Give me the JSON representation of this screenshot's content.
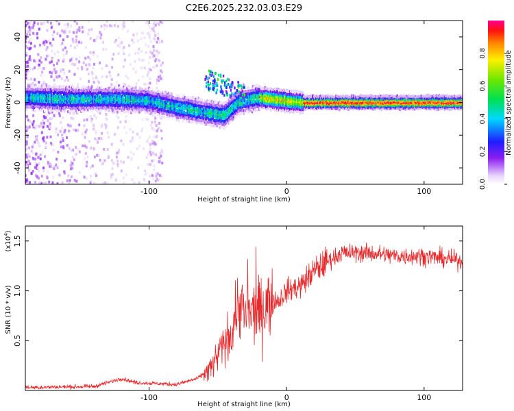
{
  "chart_data": [
    {
      "type": "heatmap",
      "title": "C2E6.2025.232.03.03.E29",
      "xlabel": "Height of straight line (km)",
      "ylabel": "Frequency (Hz)",
      "xlim": [
        -190,
        128
      ],
      "ylim": [
        -50,
        50
      ],
      "xticks": [
        -100,
        0,
        100
      ],
      "yticks": [
        -40,
        -20,
        0,
        20,
        40
      ],
      "colorbar": {
        "label": "Normalized spectral amplitude",
        "range": [
          0.0,
          1.0
        ],
        "ticks": [
          0.0,
          0.2,
          0.4,
          0.6,
          0.8
        ]
      },
      "ridge": {
        "description_points": [
          {
            "x": -190,
            "y": 3
          },
          {
            "x": -160,
            "y": 2
          },
          {
            "x": -120,
            "y": 2
          },
          {
            "x": -100,
            "y": 1
          },
          {
            "x": -80,
            "y": -3
          },
          {
            "x": -60,
            "y": -6
          },
          {
            "x": -45,
            "y": -8
          },
          {
            "x": -35,
            "y": 0
          },
          {
            "x": -20,
            "y": 3
          },
          {
            "x": 0,
            "y": 1
          },
          {
            "x": 12,
            "y": 0
          },
          {
            "x": 128,
            "y": 0
          }
        ]
      }
    },
    {
      "type": "line",
      "xlabel": "Height of straight line (km)",
      "ylabel": "SNR (10 * v/v)",
      "multiplier_label": "(x10",
      "multiplier_exp": "4",
      "xlim": [
        -190,
        128
      ],
      "ylim": [
        0,
        1.65
      ],
      "xticks": [
        -100,
        0,
        100
      ],
      "yticks": [
        0.5,
        1.0,
        1.5
      ],
      "ytick_labels": [
        "0.5",
        "1.0",
        "1.5"
      ],
      "series": [
        {
          "name": "SNR",
          "color": "#e8292c",
          "points": [
            {
              "x": -190,
              "y": 0.03
            },
            {
              "x": -140,
              "y": 0.04
            },
            {
              "x": -120,
              "y": 0.12
            },
            {
              "x": -110,
              "y": 0.08
            },
            {
              "x": -80,
              "y": 0.06
            },
            {
              "x": -65,
              "y": 0.12
            },
            {
              "x": -55,
              "y": 0.22
            },
            {
              "x": -48,
              "y": 0.4
            },
            {
              "x": -40,
              "y": 0.6
            },
            {
              "x": -35,
              "y": 0.9
            },
            {
              "x": -30,
              "y": 0.75
            },
            {
              "x": -20,
              "y": 0.8
            },
            {
              "x": -12,
              "y": 0.9
            },
            {
              "x": -6,
              "y": 0.9
            },
            {
              "x": 0,
              "y": 1.0
            },
            {
              "x": 10,
              "y": 1.05
            },
            {
              "x": 20,
              "y": 1.2
            },
            {
              "x": 30,
              "y": 1.3
            },
            {
              "x": 40,
              "y": 1.38
            },
            {
              "x": 60,
              "y": 1.38
            },
            {
              "x": 80,
              "y": 1.35
            },
            {
              "x": 100,
              "y": 1.35
            },
            {
              "x": 128,
              "y": 1.3
            }
          ]
        }
      ]
    }
  ]
}
